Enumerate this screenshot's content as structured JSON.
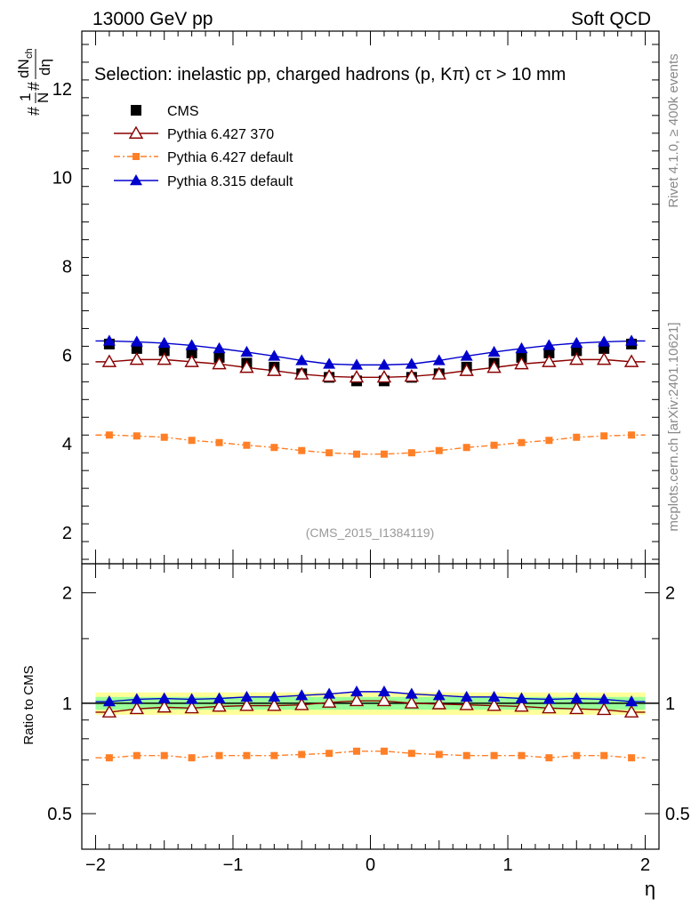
{
  "header": {
    "energy": "13000 GeV pp",
    "category": "Soft QCD"
  },
  "side": {
    "rivet": "Rivet 4.1.0, ≥ 400k events",
    "mcplots": "mcplots.cern.ch [arXiv:2401.10621]"
  },
  "colors": {
    "cms": "#000000",
    "p6_370": "#8b0000",
    "p6_default": "#ff7f27",
    "p8": "#0000cd",
    "band_inner": "#99ff99",
    "band_outer": "#ffff99"
  },
  "chart_data": [
    {
      "type": "scatter",
      "title": "Selection: inelastic pp, charged hadrons (p, Kπ) cτ > 10 mm",
      "xlabel": "η",
      "ylabel": "#1/N # dN_ch/dη",
      "watermark": "(CMS_2015_I1384119)",
      "xlim": [
        -2.1,
        2.1
      ],
      "ylim": [
        1.3,
        13.3
      ],
      "yticks": [
        2,
        4,
        6,
        8,
        10,
        12
      ],
      "x": [
        -1.9,
        -1.7,
        -1.5,
        -1.3,
        -1.1,
        -0.9,
        -0.7,
        -0.5,
        -0.3,
        -0.1,
        0.1,
        0.3,
        0.5,
        0.7,
        0.9,
        1.1,
        1.3,
        1.5,
        1.7,
        1.9
      ],
      "series": [
        {
          "name": "CMS",
          "key": "cms",
          "marker": "square",
          "values": [
            6.25,
            6.15,
            6.1,
            6.05,
            5.95,
            5.82,
            5.73,
            5.58,
            5.5,
            5.42,
            5.42,
            5.5,
            5.58,
            5.73,
            5.82,
            5.95,
            6.05,
            6.1,
            6.15,
            6.25
          ]
        },
        {
          "name": "Pythia 6.427 370",
          "key": "p6_370",
          "marker": "triangle-open",
          "values": [
            5.85,
            5.9,
            5.9,
            5.85,
            5.8,
            5.72,
            5.65,
            5.57,
            5.52,
            5.5,
            5.5,
            5.52,
            5.57,
            5.65,
            5.72,
            5.8,
            5.85,
            5.9,
            5.9,
            5.85
          ]
        },
        {
          "name": "Pythia 6.427 default",
          "key": "p6_default",
          "marker": "square-small",
          "values": [
            4.2,
            4.18,
            4.15,
            4.08,
            4.03,
            3.97,
            3.92,
            3.85,
            3.8,
            3.77,
            3.77,
            3.8,
            3.85,
            3.92,
            3.97,
            4.03,
            4.08,
            4.15,
            4.18,
            4.2
          ]
        },
        {
          "name": "Pythia 8.315 default",
          "key": "p8",
          "marker": "triangle",
          "values": [
            6.32,
            6.3,
            6.27,
            6.22,
            6.15,
            6.07,
            5.98,
            5.88,
            5.8,
            5.78,
            5.78,
            5.8,
            5.88,
            5.98,
            6.07,
            6.15,
            6.22,
            6.27,
            6.3,
            6.32
          ]
        }
      ]
    },
    {
      "type": "scatter",
      "title": "",
      "xlabel": "η",
      "ylabel": "Ratio to CMS",
      "xlim": [
        -2.1,
        2.1
      ],
      "ylim": [
        0.4,
        2.4
      ],
      "scale": "log",
      "yticks": [
        0.5,
        1,
        2
      ],
      "xticks": [
        -2,
        -1,
        0,
        1,
        2
      ],
      "xtick_labels": [
        "−2",
        "−1",
        "0",
        "1",
        "2"
      ],
      "x": [
        -1.9,
        -1.7,
        -1.5,
        -1.3,
        -1.1,
        -0.9,
        -0.7,
        -0.5,
        -0.3,
        -0.1,
        0.1,
        0.3,
        0.5,
        0.7,
        0.9,
        1.1,
        1.3,
        1.5,
        1.7,
        1.9
      ],
      "band_inner": [
        0.96,
        1.04
      ],
      "band_outer": [
        0.93,
        1.07
      ],
      "series": [
        {
          "name": "Pythia 6.427 370",
          "key": "p6_370",
          "marker": "triangle-open",
          "values": [
            0.945,
            0.965,
            0.975,
            0.97,
            0.98,
            0.985,
            0.985,
            0.99,
            1.005,
            1.015,
            1.015,
            1.0,
            0.995,
            0.99,
            0.985,
            0.98,
            0.97,
            0.965,
            0.96,
            0.945
          ]
        },
        {
          "name": "Pythia 6.427 default",
          "key": "p6_default",
          "marker": "square-small",
          "values": [
            0.71,
            0.72,
            0.72,
            0.71,
            0.72,
            0.72,
            0.72,
            0.725,
            0.73,
            0.74,
            0.74,
            0.73,
            0.725,
            0.72,
            0.72,
            0.72,
            0.71,
            0.72,
            0.72,
            0.71
          ]
        },
        {
          "name": "Pythia 8.315 default",
          "key": "p8",
          "marker": "triangle",
          "values": [
            1.01,
            1.025,
            1.03,
            1.025,
            1.03,
            1.04,
            1.04,
            1.05,
            1.06,
            1.075,
            1.075,
            1.06,
            1.05,
            1.04,
            1.04,
            1.03,
            1.025,
            1.03,
            1.025,
            1.01
          ]
        }
      ]
    }
  ]
}
